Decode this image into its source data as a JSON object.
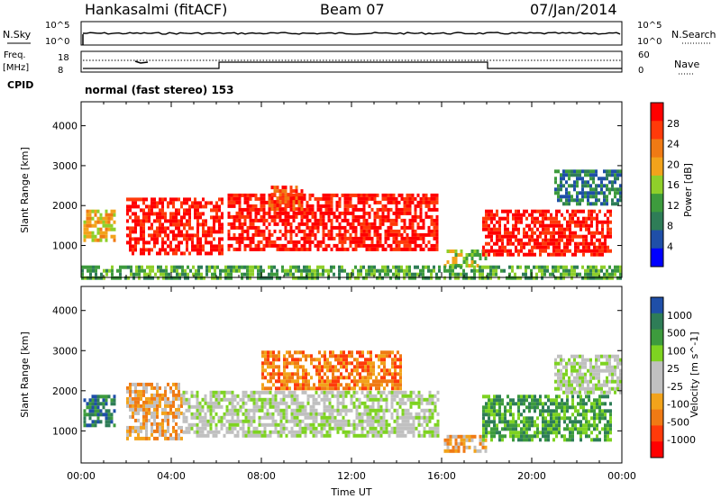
{
  "header": {
    "station": "Hankasalmi (fitACF)",
    "beam": "Beam 07",
    "date": "07/Jan/2014"
  },
  "strip_labels": {
    "nsky": "N.Sky",
    "nsearch": "N.Search",
    "freq": "Freq.",
    "freq_unit": "[MHz]",
    "nave": "Nave",
    "cpid": "CPID",
    "cpid_value": "normal (fast stereo) 153"
  },
  "strip_ticks": {
    "noise_top": "10^5",
    "noise_bottom": "10^0",
    "freq_top": "18",
    "freq_bottom": "8",
    "nave_top": "60",
    "nave_bottom": "0"
  },
  "colors": {
    "power_scale": [
      "#0000ff",
      "#1f4fa8",
      "#2e7d57",
      "#3d9b3d",
      "#8fcf2a",
      "#f2a31b",
      "#f07a14",
      "#ff3a0a",
      "#ff0000"
    ],
    "velocity_scale": [
      "#1f4fa8",
      "#2e7d57",
      "#3d9b3d",
      "#7ed321",
      "#c0c0c0",
      "#c0c0c0",
      "#f2a31b",
      "#f07a14",
      "#ff3a0a",
      "#ff0000"
    ]
  },
  "chart_data": [
    {
      "type": "heatmap",
      "name": "power",
      "ylabel": "Slant Range [km]",
      "ylim": [
        200,
        4600
      ],
      "yticks": [
        "1000",
        "2000",
        "3000",
        "4000"
      ],
      "xlim_hours": [
        0,
        24
      ],
      "colorbar": {
        "label": "Power [dB]",
        "ticks": [
          "4",
          "8",
          "12",
          "16",
          "20",
          "24",
          "28"
        ]
      },
      "echo_regions": [
        {
          "t_start": 0.1,
          "t_end": 1.5,
          "range_start": 1100,
          "range_end": 1900,
          "level": 5
        },
        {
          "t_start": 2.0,
          "t_end": 6.2,
          "range_start": 800,
          "range_end": 2200,
          "level": 8
        },
        {
          "t_start": 6.5,
          "t_end": 15.8,
          "range_start": 900,
          "range_end": 2300,
          "level": 8
        },
        {
          "t_start": 8.3,
          "t_end": 9.8,
          "range_start": 1900,
          "range_end": 2500,
          "level": 7
        },
        {
          "t_start": 16.1,
          "t_end": 18.0,
          "range_start": 500,
          "range_end": 900,
          "level": 4
        },
        {
          "t_start": 17.8,
          "t_end": 23.5,
          "range_start": 800,
          "range_end": 1900,
          "level": 8
        },
        {
          "t_start": 21.0,
          "t_end": 24.0,
          "range_start": 2000,
          "range_end": 2900,
          "level": 2
        },
        {
          "t_start": 0.0,
          "t_end": 24.0,
          "range_start": 200,
          "range_end": 500,
          "level": 3
        }
      ]
    },
    {
      "type": "heatmap",
      "name": "velocity",
      "ylabel": "Slant Range [km]",
      "xlabel": "Time UT",
      "ylim": [
        200,
        4600
      ],
      "yticks": [
        "1000",
        "2000",
        "3000",
        "4000"
      ],
      "xticks": [
        "00:00",
        "04:00",
        "08:00",
        "12:00",
        "16:00",
        "20:00",
        "00:00"
      ],
      "xlim_hours": [
        0,
        24
      ],
      "colorbar": {
        "label": "Velocity [m s^-1]",
        "ticks": [
          "1000",
          "500",
          "100",
          "25",
          "-25",
          "-100",
          "-500",
          "-1000"
        ]
      },
      "echo_regions": [
        {
          "t_start": 0.1,
          "t_end": 1.5,
          "range_start": 1100,
          "range_end": 1900,
          "level": 1
        },
        {
          "t_start": 2.0,
          "t_end": 4.5,
          "range_start": 800,
          "range_end": 2200,
          "level": 6
        },
        {
          "t_start": 4.5,
          "t_end": 15.8,
          "range_start": 900,
          "range_end": 2000,
          "level": 4
        },
        {
          "t_start": 8.0,
          "t_end": 14.2,
          "range_start": 2100,
          "range_end": 3000,
          "level": 7
        },
        {
          "t_start": 16.1,
          "t_end": 18.0,
          "range_start": 500,
          "range_end": 900,
          "level": 6
        },
        {
          "t_start": 17.8,
          "t_end": 23.5,
          "range_start": 800,
          "range_end": 1900,
          "level": 2
        },
        {
          "t_start": 21.0,
          "t_end": 24.0,
          "range_start": 2000,
          "range_end": 2900,
          "level": 4
        }
      ]
    }
  ]
}
